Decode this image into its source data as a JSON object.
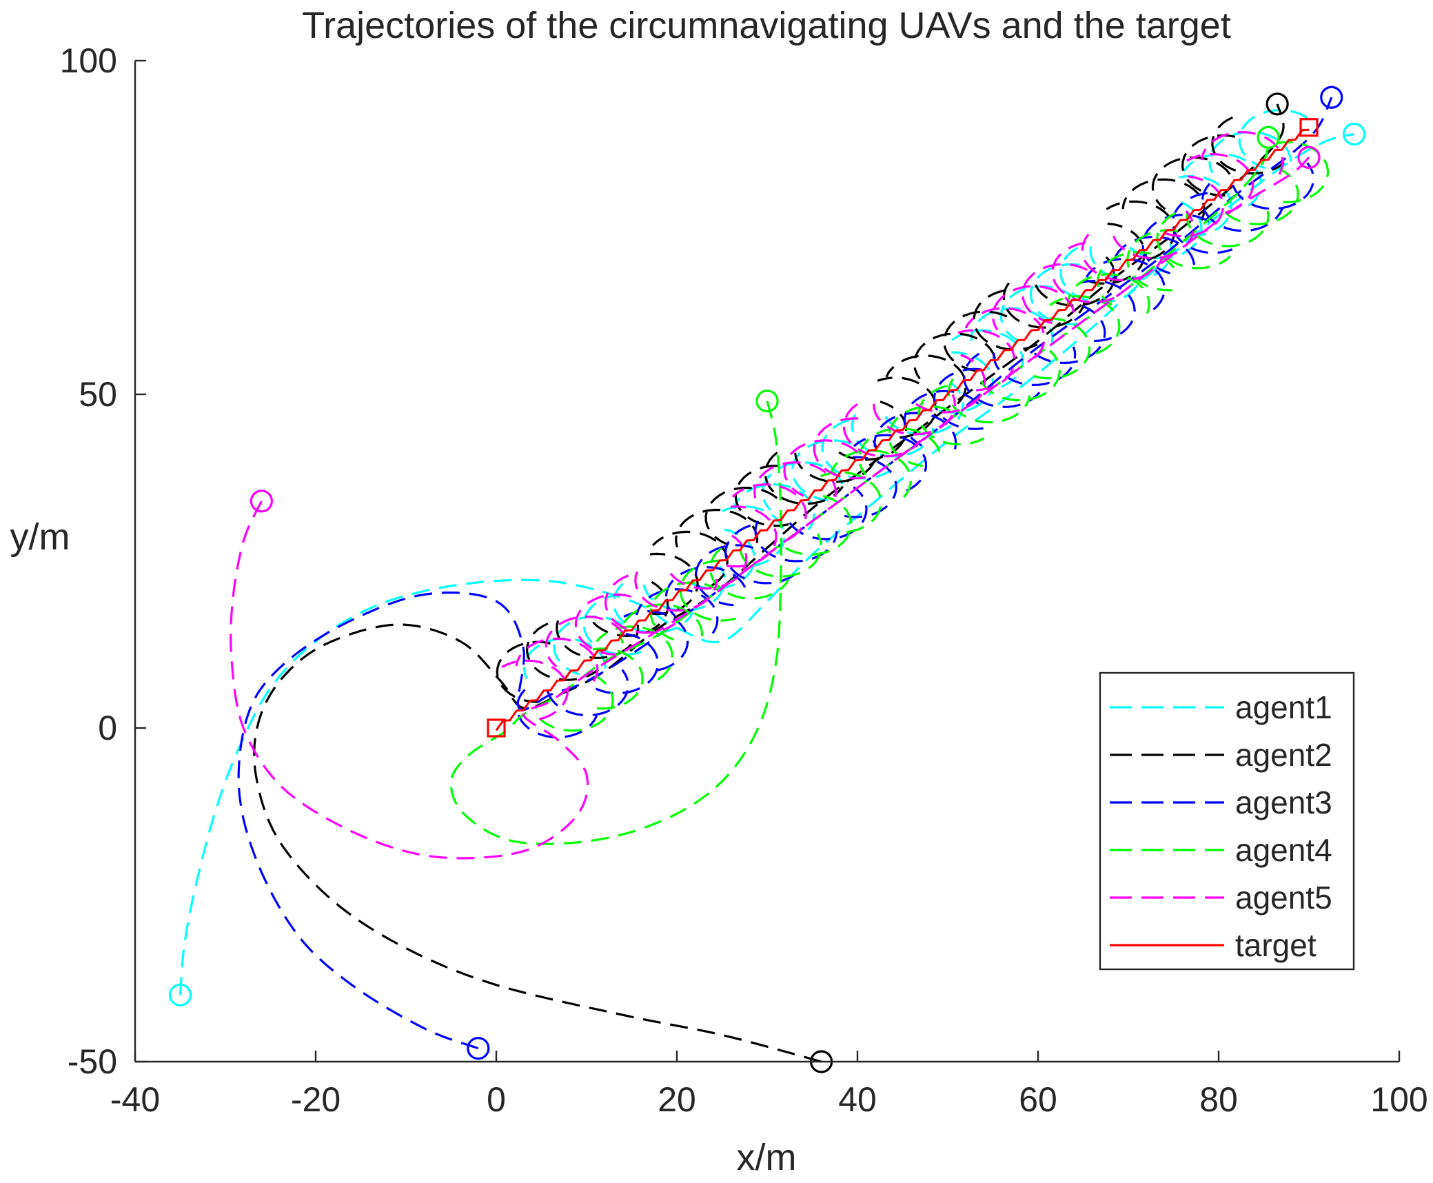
{
  "chart_data": {
    "type": "line",
    "title": "Trajectories of the circumnavigating UAVs and the target",
    "xlabel": "x/m",
    "ylabel": "y/m",
    "xlim": [
      -40,
      100
    ],
    "ylim": [
      -50,
      100
    ],
    "xticks": [
      -40,
      -20,
      0,
      20,
      40,
      60,
      80,
      100
    ],
    "yticks": [
      -50,
      0,
      50,
      100
    ],
    "grid": false,
    "legend_position": "lower-right",
    "series": [
      {
        "name": "agent1",
        "color": "#00ffff",
        "style": "dashed",
        "start": [
          -35,
          -40
        ],
        "end": [
          95,
          89
        ],
        "path": [
          [
            -35,
            -40
          ],
          [
            -34.5,
            -32
          ],
          [
            -33,
            -22
          ],
          [
            -31,
            -12
          ],
          [
            -28.5,
            -3
          ],
          [
            -25,
            6
          ],
          [
            -20,
            13
          ],
          [
            -13,
            18.5
          ],
          [
            -4,
            21.5
          ],
          [
            6,
            22
          ],
          [
            15,
            19
          ],
          [
            20,
            15
          ],
          [
            25,
            13
          ],
          [
            30,
            19
          ],
          [
            35,
            26
          ],
          [
            42,
            34
          ],
          [
            50,
            43
          ],
          [
            58,
            51
          ],
          [
            66,
            60
          ],
          [
            74,
            70
          ],
          [
            82,
            79
          ],
          [
            88,
            85
          ],
          [
            92,
            88
          ],
          [
            95,
            89
          ]
        ],
        "orbit_offset": [
          1.6,
          2.9
        ],
        "orbit_radius": 4.5
      },
      {
        "name": "agent2",
        "color": "#000000",
        "style": "dashed",
        "start": [
          36,
          -50
        ],
        "end": [
          86.5,
          93.5
        ],
        "path": [
          [
            36,
            -50
          ],
          [
            25,
            -46
          ],
          [
            14,
            -43
          ],
          [
            0,
            -38.5
          ],
          [
            -10,
            -33
          ],
          [
            -18,
            -26
          ],
          [
            -24,
            -17
          ],
          [
            -26.5,
            -8
          ],
          [
            -26.5,
            0
          ],
          [
            -24,
            7
          ],
          [
            -19,
            12.5
          ],
          [
            -11,
            15.5
          ],
          [
            -4,
            13
          ],
          [
            0.5,
            7
          ],
          [
            3,
            3
          ],
          [
            7,
            5
          ],
          [
            12,
            8.5
          ],
          [
            18,
            15
          ],
          [
            24,
            20
          ],
          [
            30,
            27
          ],
          [
            36,
            34
          ],
          [
            44,
            42
          ],
          [
            52,
            50
          ],
          [
            60,
            58
          ],
          [
            68,
            67
          ],
          [
            76,
            75
          ],
          [
            83,
            83
          ],
          [
            87,
            89
          ],
          [
            86.5,
            93.5
          ]
        ],
        "orbit_offset": [
          -1.4,
          2.4
        ],
        "orbit_radius": 4.5
      },
      {
        "name": "agent3",
        "color": "#0000ff",
        "style": "dashed",
        "start": [
          -2,
          -48
        ],
        "end": [
          92.5,
          94.5
        ],
        "path": [
          [
            -2,
            -48
          ],
          [
            -8,
            -45
          ],
          [
            -16,
            -38.5
          ],
          [
            -22,
            -31
          ],
          [
            -26.5,
            -20
          ],
          [
            -28.5,
            -9
          ],
          [
            -27.5,
            2
          ],
          [
            -24,
            9
          ],
          [
            -17,
            15.5
          ],
          [
            -8,
            20
          ],
          [
            0,
            19
          ],
          [
            3,
            12
          ],
          [
            2.5,
            3
          ],
          [
            6,
            5
          ],
          [
            10,
            7
          ],
          [
            16,
            12
          ],
          [
            22,
            18
          ],
          [
            28,
            24
          ],
          [
            34,
            30
          ],
          [
            42,
            38
          ],
          [
            50,
            46
          ],
          [
            58,
            55
          ],
          [
            66,
            63
          ],
          [
            74,
            71
          ],
          [
            82,
            80
          ],
          [
            88,
            86
          ],
          [
            91,
            90
          ],
          [
            92.5,
            94.5
          ]
        ],
        "orbit_offset": [
          0.8,
          -2.9
        ],
        "orbit_radius": 4.5
      },
      {
        "name": "agent4",
        "color": "#00ff00",
        "style": "dashed",
        "start": [
          30,
          49
        ],
        "end": [
          85.5,
          88.5
        ],
        "path": [
          [
            30,
            49
          ],
          [
            31,
            43
          ],
          [
            31.5,
            33
          ],
          [
            31.5,
            22
          ],
          [
            31,
            10
          ],
          [
            29,
            0
          ],
          [
            25,
            -8
          ],
          [
            19,
            -13.5
          ],
          [
            11,
            -16.8
          ],
          [
            2,
            -17
          ],
          [
            -3.5,
            -13
          ],
          [
            -5,
            -8
          ],
          [
            -3,
            -4
          ],
          [
            1,
            -0.5
          ],
          [
            3,
            2
          ],
          [
            7,
            5
          ],
          [
            12,
            10
          ],
          [
            18,
            14
          ],
          [
            24,
            20
          ],
          [
            30,
            26
          ],
          [
            38,
            34
          ],
          [
            46,
            42
          ],
          [
            54,
            50
          ],
          [
            62,
            58
          ],
          [
            70,
            66
          ],
          [
            77,
            74
          ],
          [
            82,
            80
          ],
          [
            85,
            85
          ],
          [
            85.5,
            88.5
          ]
        ],
        "orbit_offset": [
          2.4,
          -1.9
        ],
        "orbit_radius": 4.5
      },
      {
        "name": "agent5",
        "color": "#ff00ff",
        "style": "dashed",
        "start": [
          -26,
          34
        ],
        "end": [
          90,
          85.5
        ],
        "path": [
          [
            -26,
            34
          ],
          [
            -28,
            28
          ],
          [
            -29.2,
            19
          ],
          [
            -29.3,
            10
          ],
          [
            -28,
            0
          ],
          [
            -24,
            -8.5
          ],
          [
            -17.5,
            -14.5
          ],
          [
            -10,
            -18.5
          ],
          [
            -3,
            -19.5
          ],
          [
            4,
            -18
          ],
          [
            9,
            -13
          ],
          [
            10,
            -7
          ],
          [
            7,
            -2
          ],
          [
            3,
            2
          ],
          [
            6,
            4
          ],
          [
            10,
            8
          ],
          [
            16,
            13
          ],
          [
            22,
            18
          ],
          [
            28,
            24
          ],
          [
            34,
            30
          ],
          [
            42,
            38
          ],
          [
            50,
            46
          ],
          [
            58,
            54
          ],
          [
            66,
            62
          ],
          [
            74,
            70
          ],
          [
            82,
            78
          ],
          [
            88,
            83
          ],
          [
            90,
            85.5
          ]
        ],
        "orbit_offset": [
          -2.6,
          -0.4
        ],
        "orbit_radius": 4.5
      },
      {
        "name": "target",
        "color": "#ff0000",
        "style": "solid",
        "start": [
          0,
          0
        ],
        "end": [
          90,
          90
        ],
        "path": [
          [
            0,
            0
          ],
          [
            90,
            90
          ]
        ]
      }
    ]
  }
}
